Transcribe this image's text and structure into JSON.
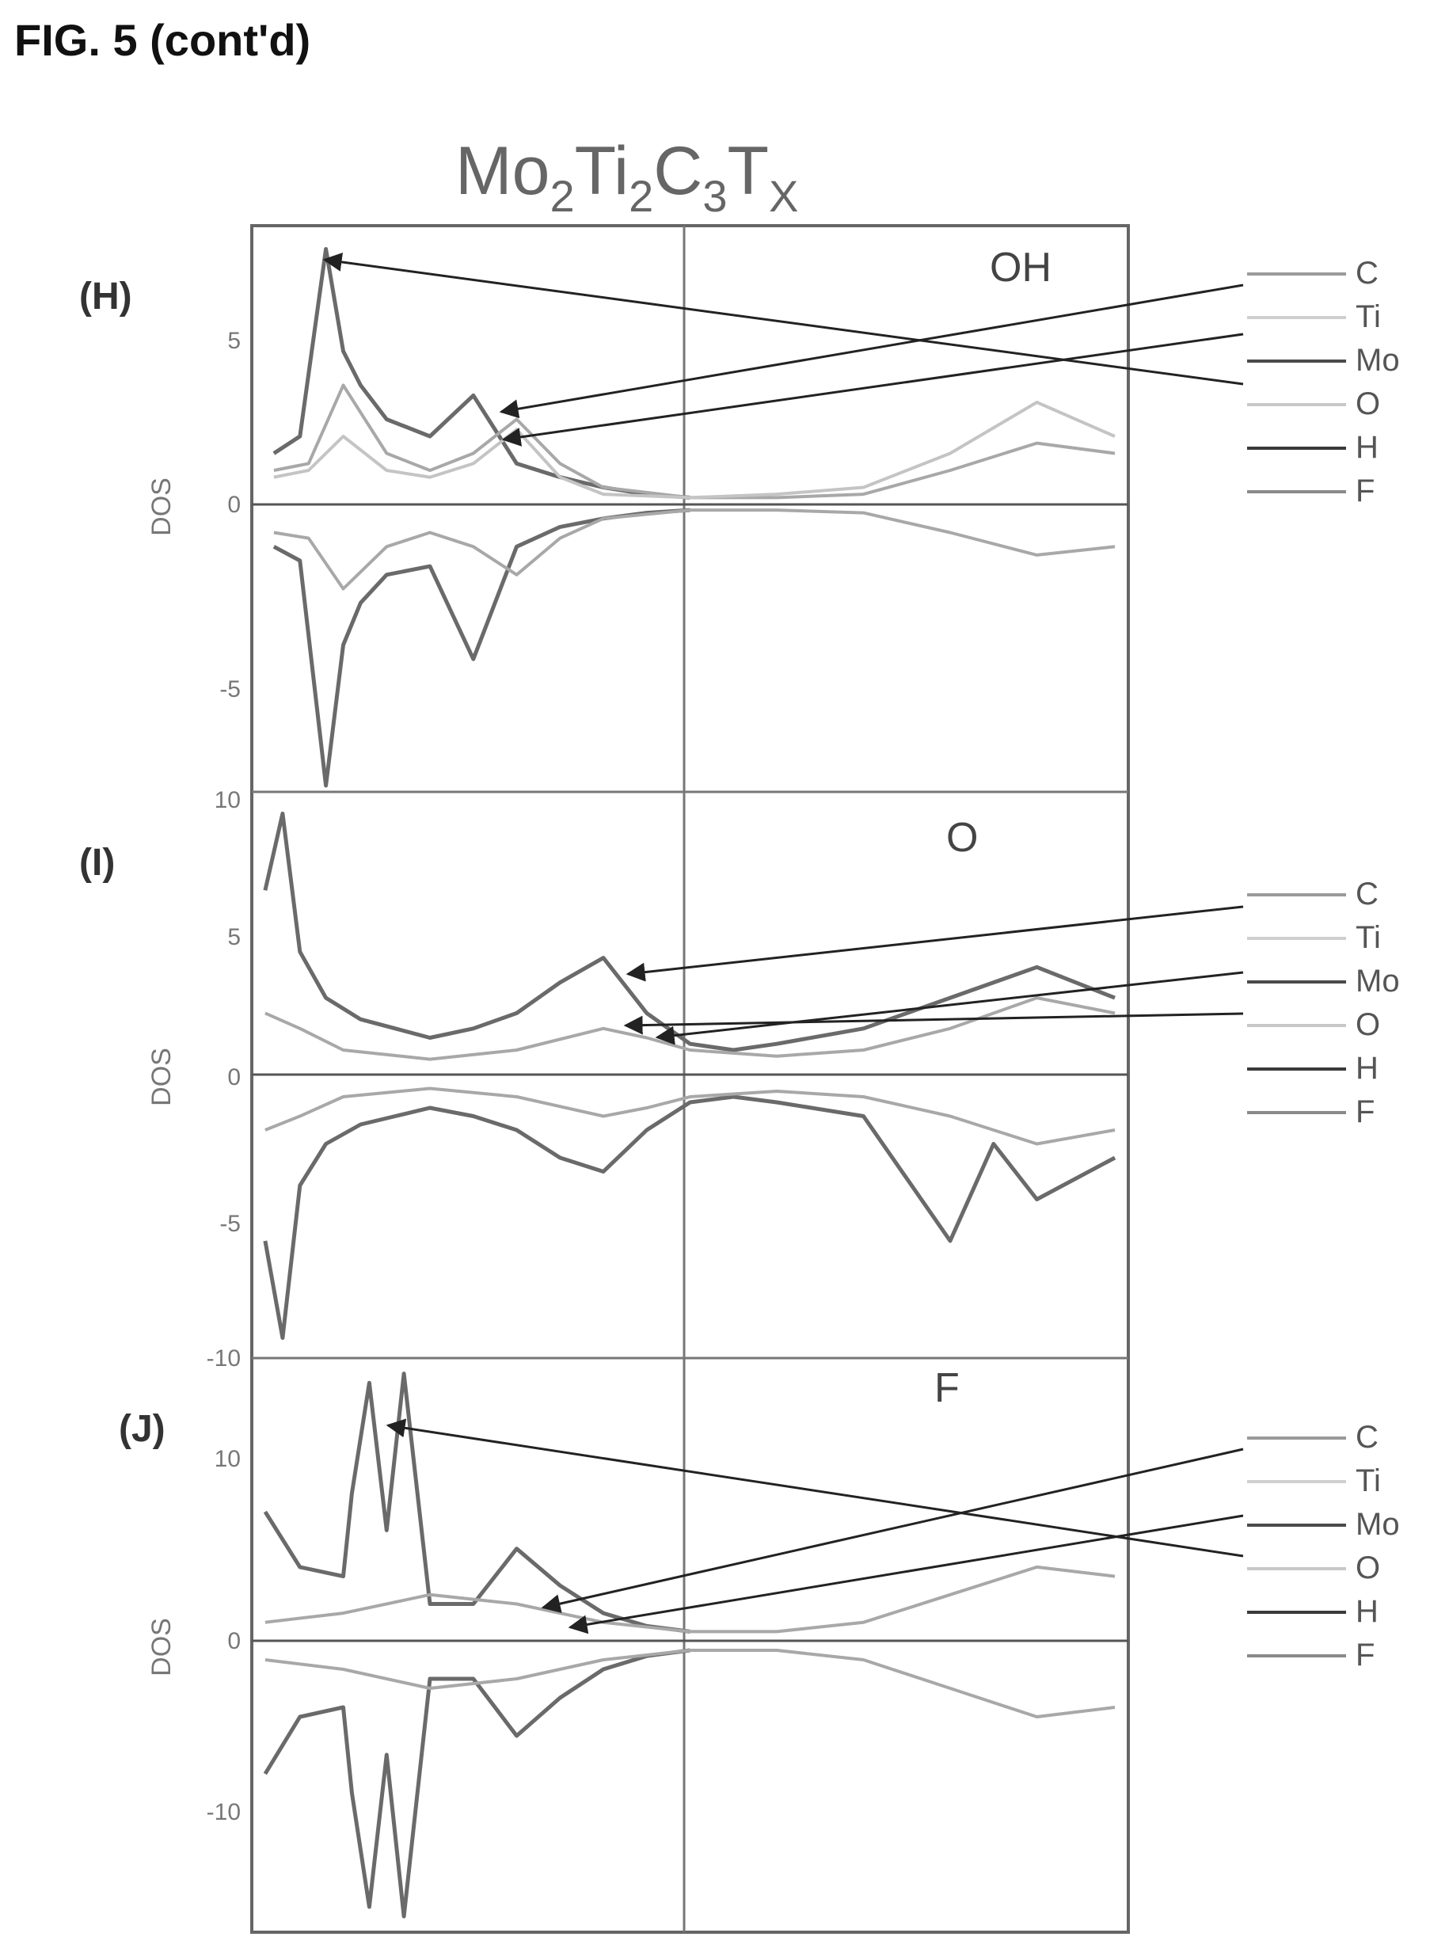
{
  "figure_label": "FIG. 5 (cont'd)",
  "title": {
    "base": "Mo",
    "s1": "2",
    "t2": "Ti",
    "s2": "2",
    "t3": "C",
    "s3": "3",
    "t4": "T",
    "s4": "X"
  },
  "ylabel": "DOS",
  "legend_items": [
    "C",
    "Ti",
    "Mo",
    "O",
    "H",
    "F"
  ],
  "legend_colors": [
    "#9a9a9a",
    "#cfcfcf",
    "#4a4a4a",
    "#c8c8c8",
    "#3a3a3a",
    "#8a8a8a"
  ],
  "chart_data": [
    {
      "type": "line",
      "panel": "(H)",
      "termination": "OH",
      "ylabel": "DOS",
      "yticks": [
        "5",
        "0",
        "-5",
        "10"
      ],
      "ylim": [
        -10,
        8
      ],
      "xlim": [
        0,
        1
      ],
      "series": [
        {
          "name": "Mo",
          "x": [
            0.02,
            0.05,
            0.08,
            0.1,
            0.12,
            0.15,
            0.2,
            0.25,
            0.3,
            0.35,
            0.4,
            0.45,
            0.5
          ],
          "y": [
            1.5,
            2.0,
            7.5,
            4.5,
            3.5,
            2.5,
            2.0,
            3.2,
            1.2,
            0.8,
            0.5,
            0.3,
            0.2
          ]
        },
        {
          "name": "C",
          "x": [
            0.02,
            0.06,
            0.1,
            0.15,
            0.2,
            0.25,
            0.3,
            0.35,
            0.4,
            0.5,
            0.6,
            0.7,
            0.8,
            0.9,
            0.99
          ],
          "y": [
            1.0,
            1.2,
            3.5,
            1.5,
            1.0,
            1.5,
            2.5,
            1.2,
            0.5,
            0.2,
            0.2,
            0.3,
            1.0,
            1.8,
            1.5
          ]
        },
        {
          "name": "Ti",
          "x": [
            0.02,
            0.06,
            0.1,
            0.15,
            0.2,
            0.25,
            0.3,
            0.35,
            0.4,
            0.5,
            0.6,
            0.7,
            0.8,
            0.9,
            0.99
          ],
          "y": [
            0.8,
            1.0,
            2.0,
            1.0,
            0.8,
            1.2,
            2.2,
            0.8,
            0.3,
            0.2,
            0.3,
            0.5,
            1.5,
            3.0,
            2.0
          ]
        },
        {
          "name": "Mo (down)",
          "x": [
            0.02,
            0.05,
            0.08,
            0.1,
            0.12,
            0.15,
            0.2,
            0.25,
            0.3,
            0.35,
            0.4,
            0.45,
            0.5
          ],
          "y": [
            -1.5,
            -2.0,
            -10.0,
            -5.0,
            -3.5,
            -2.5,
            -2.2,
            -5.5,
            -1.5,
            -0.8,
            -0.5,
            -0.3,
            -0.2
          ]
        },
        {
          "name": "C (down)",
          "x": [
            0.02,
            0.06,
            0.1,
            0.15,
            0.2,
            0.25,
            0.3,
            0.35,
            0.4,
            0.5,
            0.6,
            0.7,
            0.8,
            0.9,
            0.99
          ],
          "y": [
            -1.0,
            -1.2,
            -3.0,
            -1.5,
            -1.0,
            -1.5,
            -2.5,
            -1.2,
            -0.5,
            -0.2,
            -0.2,
            -0.3,
            -1.0,
            -1.8,
            -1.5
          ]
        }
      ]
    },
    {
      "type": "line",
      "panel": "(I)",
      "termination": "O",
      "ylabel": "DOS",
      "yticks": [
        "5",
        "0",
        "-5",
        "-10"
      ],
      "ylim": [
        -10,
        9
      ],
      "xlim": [
        0,
        1
      ],
      "series": [
        {
          "name": "Mo",
          "x": [
            0.01,
            0.03,
            0.05,
            0.08,
            0.12,
            0.16,
            0.2,
            0.25,
            0.3,
            0.35,
            0.4,
            0.45,
            0.5,
            0.55,
            0.6,
            0.7,
            0.8,
            0.9,
            0.99
          ],
          "y": [
            6.0,
            8.5,
            4.0,
            2.5,
            1.8,
            1.5,
            1.2,
            1.5,
            2.0,
            3.0,
            3.8,
            2.0,
            1.0,
            0.8,
            1.0,
            1.5,
            2.5,
            3.5,
            2.5
          ]
        },
        {
          "name": "C",
          "x": [
            0.01,
            0.05,
            0.1,
            0.2,
            0.3,
            0.4,
            0.45,
            0.5,
            0.6,
            0.7,
            0.8,
            0.9,
            0.99
          ],
          "y": [
            2.0,
            1.5,
            0.8,
            0.5,
            0.8,
            1.5,
            1.2,
            0.8,
            0.6,
            0.8,
            1.5,
            2.5,
            2.0
          ]
        },
        {
          "name": "Mo (down)",
          "x": [
            0.01,
            0.03,
            0.05,
            0.08,
            0.12,
            0.16,
            0.2,
            0.25,
            0.3,
            0.35,
            0.4,
            0.45,
            0.5,
            0.55,
            0.6,
            0.7,
            0.8,
            0.85,
            0.9,
            0.99
          ],
          "y": [
            -6.0,
            -9.5,
            -4.0,
            -2.5,
            -1.8,
            -1.5,
            -1.2,
            -1.5,
            -2.0,
            -3.0,
            -3.5,
            -2.0,
            -1.0,
            -0.8,
            -1.0,
            -1.5,
            -6.0,
            -2.5,
            -4.5,
            -3.0
          ]
        },
        {
          "name": "C (down)",
          "x": [
            0.01,
            0.05,
            0.1,
            0.2,
            0.3,
            0.4,
            0.45,
            0.5,
            0.6,
            0.7,
            0.8,
            0.9,
            0.99
          ],
          "y": [
            -2.0,
            -1.5,
            -0.8,
            -0.5,
            -0.8,
            -1.5,
            -1.2,
            -0.8,
            -0.6,
            -0.8,
            -1.5,
            -2.5,
            -2.0
          ]
        }
      ]
    },
    {
      "type": "line",
      "panel": "(J)",
      "termination": "F",
      "ylabel": "DOS",
      "yticks": [
        "10",
        "0",
        "-10"
      ],
      "ylim": [
        -15,
        15
      ],
      "xlim": [
        0,
        1
      ],
      "series": [
        {
          "name": "Mo",
          "x": [
            0.01,
            0.05,
            0.1,
            0.11,
            0.13,
            0.15,
            0.17,
            0.2,
            0.25,
            0.3,
            0.35,
            0.4,
            0.45,
            0.5
          ],
          "y": [
            7.0,
            4.0,
            3.5,
            8.0,
            14.0,
            6.0,
            14.5,
            2.0,
            2.0,
            5.0,
            3.0,
            1.5,
            0.8,
            0.5
          ]
        },
        {
          "name": "C",
          "x": [
            0.01,
            0.1,
            0.2,
            0.3,
            0.4,
            0.5,
            0.6,
            0.7,
            0.8,
            0.9,
            0.99
          ],
          "y": [
            1.0,
            1.5,
            2.5,
            2.0,
            1.0,
            0.5,
            0.5,
            1.0,
            2.5,
            4.0,
            3.5
          ]
        },
        {
          "name": "Mo (down)",
          "x": [
            0.01,
            0.05,
            0.1,
            0.11,
            0.13,
            0.15,
            0.17,
            0.2,
            0.25,
            0.3,
            0.35,
            0.4,
            0.45,
            0.5
          ],
          "y": [
            -7.0,
            -4.0,
            -3.5,
            -8.0,
            -14.0,
            -6.0,
            -14.5,
            -2.0,
            -2.0,
            -5.0,
            -3.0,
            -1.5,
            -0.8,
            -0.5
          ]
        },
        {
          "name": "C (down)",
          "x": [
            0.01,
            0.1,
            0.2,
            0.3,
            0.4,
            0.5,
            0.6,
            0.7,
            0.8,
            0.9,
            0.99
          ],
          "y": [
            -1.0,
            -1.5,
            -2.5,
            -2.0,
            -1.0,
            -0.5,
            -0.5,
            -1.0,
            -2.5,
            -4.0,
            -3.5
          ]
        }
      ]
    }
  ]
}
